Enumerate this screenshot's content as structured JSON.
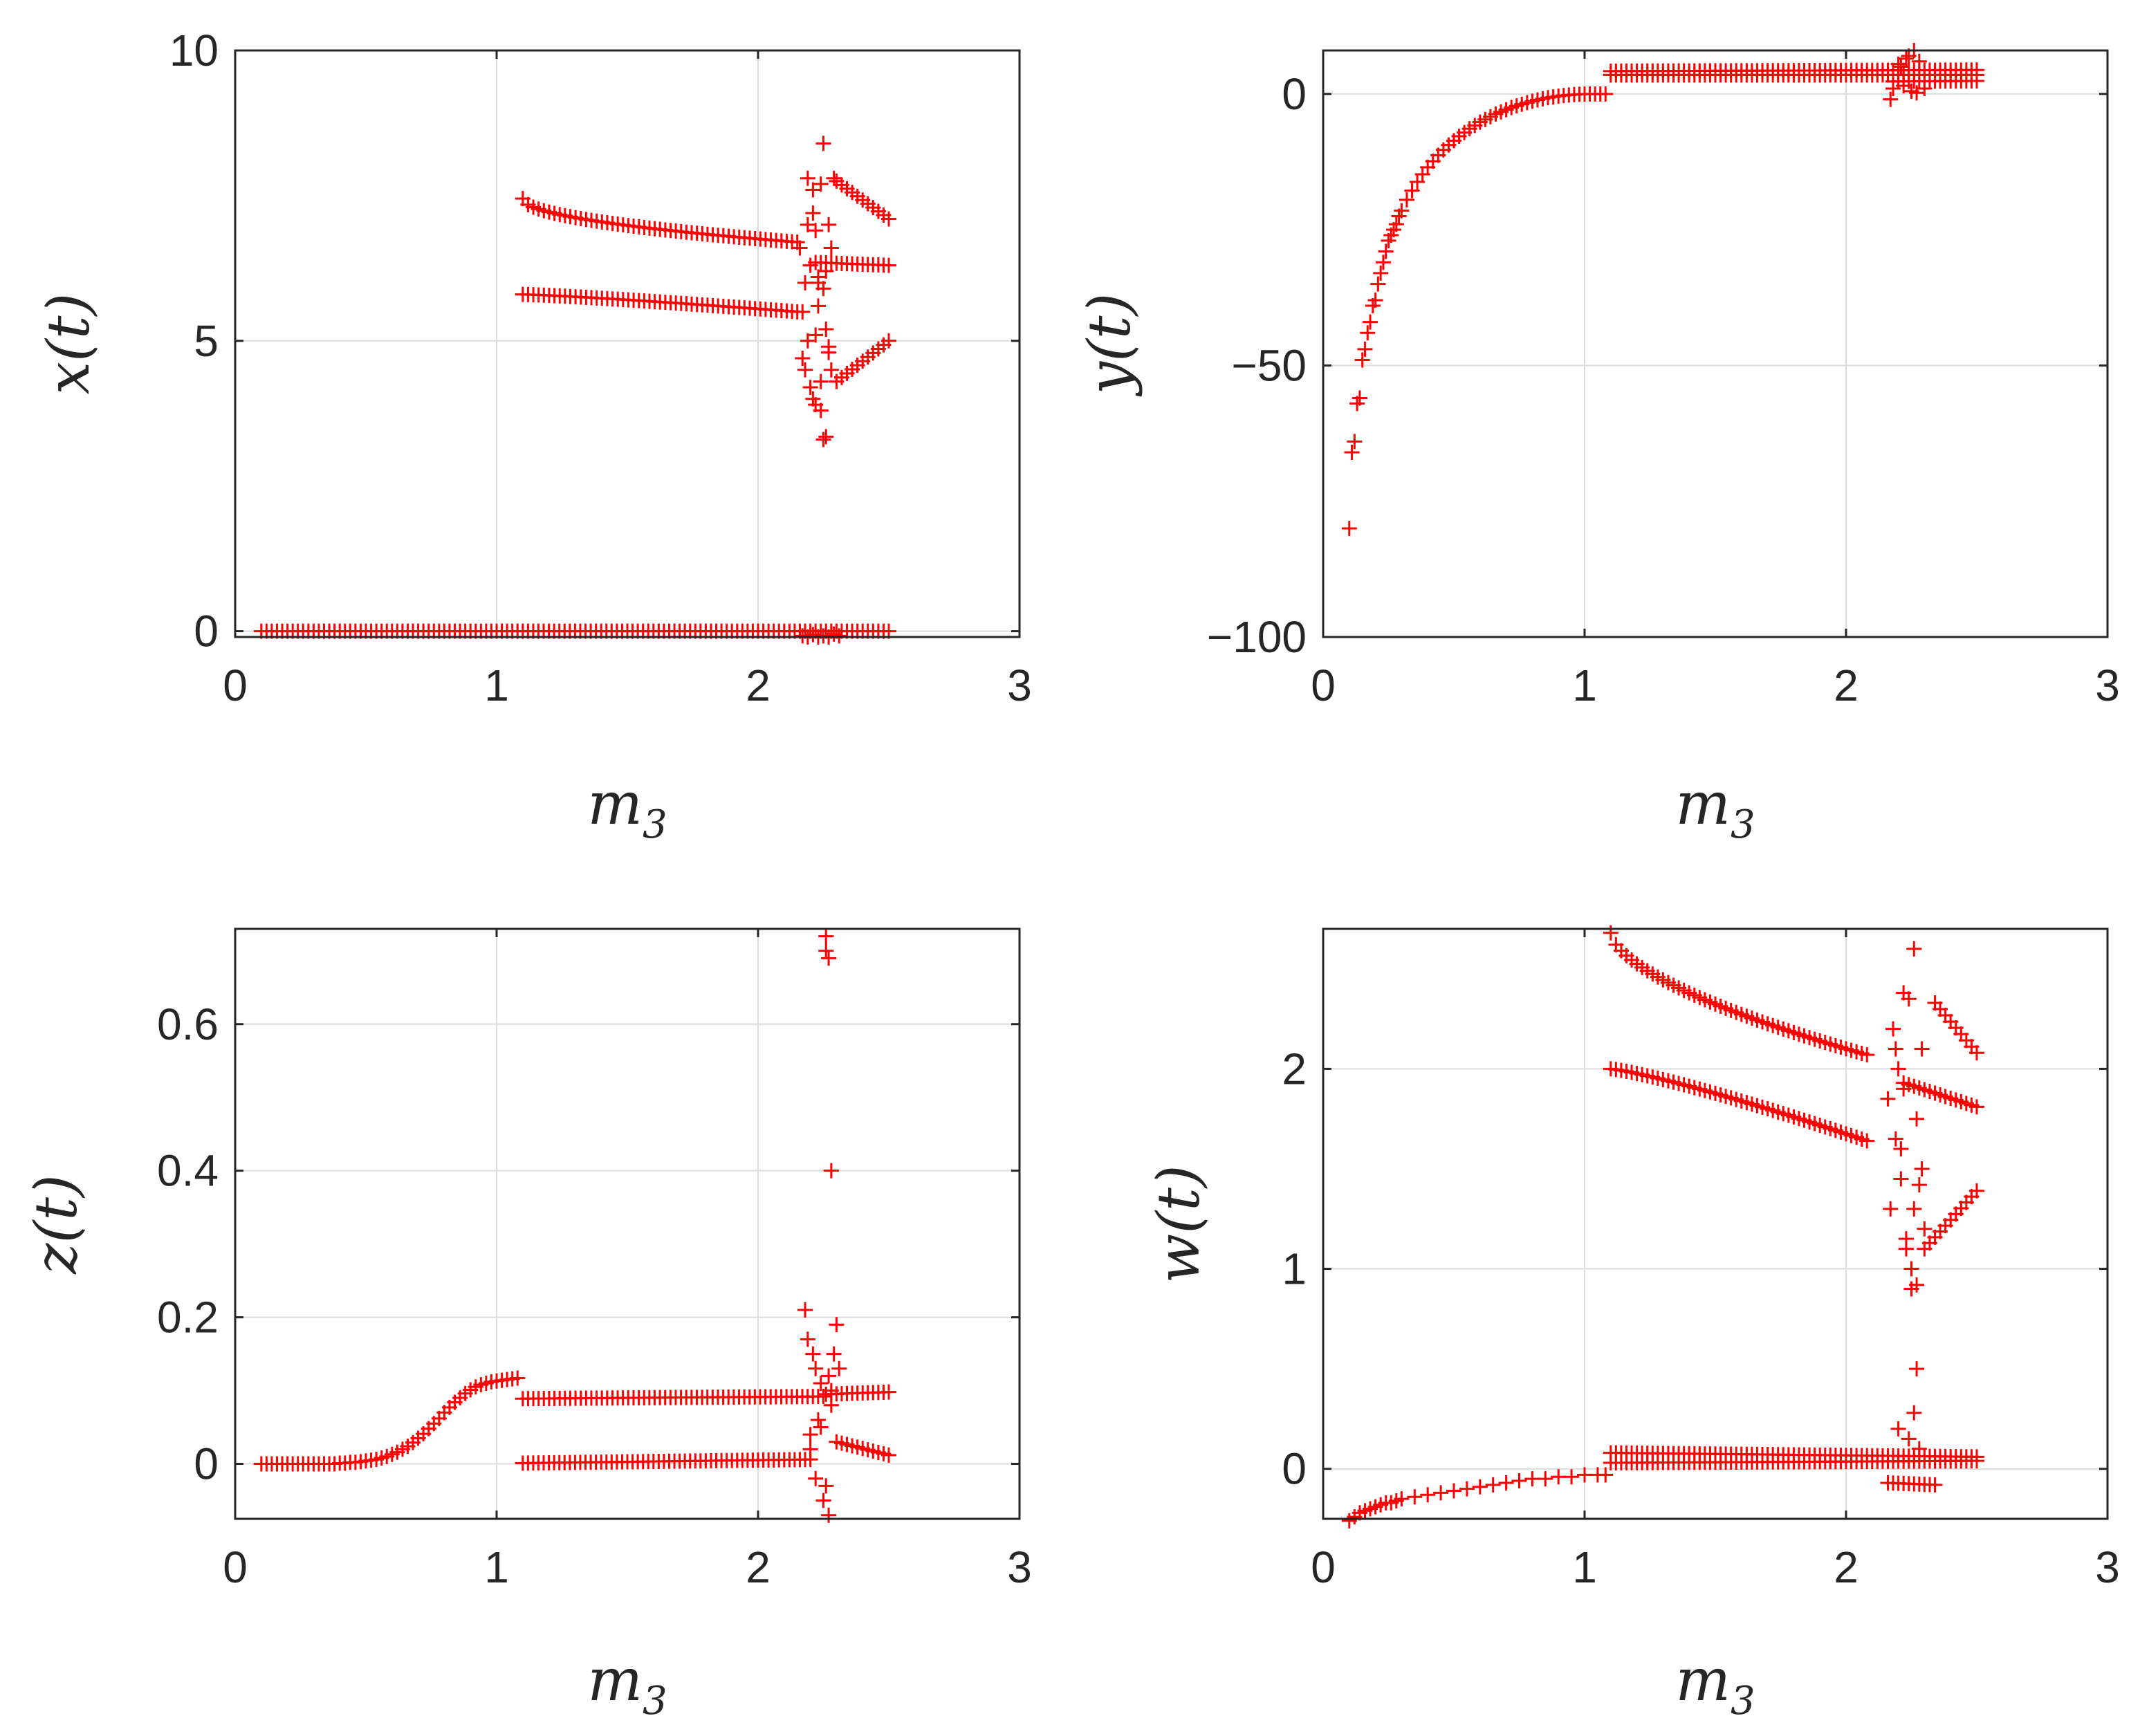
{
  "figure": {
    "marker_color": "#ff0000",
    "marker": "+",
    "background": "#ffffff"
  },
  "chart_data": [
    {
      "id": "x",
      "type": "scatter",
      "xlabel_var": "m",
      "xlabel_sub": "3",
      "ylabel": "x(t)",
      "xlim": [
        0,
        3
      ],
      "ylim": [
        -0.1,
        10
      ],
      "xticks": [
        0,
        1,
        2,
        3
      ],
      "xtick_labels": [
        "0",
        "1",
        "2",
        "3"
      ],
      "yticks": [
        0,
        5,
        10
      ],
      "ytick_labels": [
        "0",
        "5",
        "10"
      ],
      "grid": true,
      "series": [
        {
          "kind": "range",
          "x0": 0.1,
          "x1": 2.5,
          "step": 0.02,
          "y0": 0,
          "y1": 0
        },
        {
          "kind": "range",
          "x0": 1.1,
          "x1": 2.15,
          "step": 0.02,
          "y0": 7.45,
          "y1": 6.7,
          "curve": 0.5
        },
        {
          "kind": "range",
          "x0": 2.3,
          "x1": 2.5,
          "step": 0.02,
          "y0": 7.75,
          "y1": 7.1
        },
        {
          "kind": "range",
          "x0": 2.22,
          "x1": 2.5,
          "step": 0.02,
          "y0": 6.35,
          "y1": 6.3
        },
        {
          "kind": "range",
          "x0": 1.1,
          "x1": 2.15,
          "step": 0.02,
          "y0": 5.8,
          "y1": 5.5,
          "curve": 1.2
        },
        {
          "kind": "range",
          "x0": 2.3,
          "x1": 2.5,
          "step": 0.02,
          "y0": 4.3,
          "y1": 5.0
        },
        {
          "kind": "points",
          "x": [
            2.16,
            2.17,
            2.18,
            2.18,
            2.19,
            2.19,
            2.2,
            2.2,
            2.21,
            2.21,
            2.22,
            2.22,
            2.23,
            2.23,
            2.24,
            2.24,
            2.25,
            2.25,
            2.26,
            2.26,
            2.27,
            2.27,
            2.28,
            2.28,
            2.29,
            2.22,
            2.24,
            2.26,
            2.21,
            2.27,
            2.25,
            2.23,
            2.19,
            2.17
          ],
          "y": [
            6.6,
            5.5,
            4.5,
            6.0,
            7.8,
            5.0,
            4.2,
            6.3,
            7.2,
            4.0,
            6.9,
            3.9,
            5.6,
            6.0,
            3.8,
            7.7,
            3.3,
            8.4,
            3.35,
            5.2,
            4.8,
            7.0,
            4.5,
            6.6,
            7.8,
            5.1,
            4.3,
            6.2,
            7.6,
            4.9,
            5.9,
            6.1,
            7.0,
            4.7
          ]
        },
        {
          "kind": "points",
          "x": [
            2.17,
            2.19,
            2.21,
            2.23,
            2.25,
            2.27,
            2.29,
            2.31
          ],
          "y": [
            -0.08,
            -0.1,
            -0.06,
            -0.1,
            -0.08,
            -0.1,
            -0.05,
            -0.08
          ]
        }
      ]
    },
    {
      "id": "y",
      "type": "scatter",
      "xlabel_var": "m",
      "xlabel_sub": "3",
      "ylabel": "y(t)",
      "xlim": [
        0,
        3
      ],
      "ylim": [
        -100,
        8
      ],
      "xticks": [
        0,
        1,
        2,
        3
      ],
      "xtick_labels": [
        "0",
        "1",
        "2",
        "3"
      ],
      "yticks": [
        -100,
        -50,
        0
      ],
      "ytick_labels": [
        "−100",
        "−50",
        "0"
      ],
      "grid": true,
      "series": [
        {
          "kind": "points",
          "x": [
            0.1,
            0.11,
            0.12,
            0.13,
            0.14,
            0.15,
            0.16,
            0.17,
            0.18,
            0.19,
            0.2,
            0.21,
            0.22,
            0.23,
            0.24,
            0.25,
            0.26,
            0.27,
            0.28,
            0.29,
            0.3,
            0.32,
            0.34,
            0.36,
            0.38,
            0.4,
            0.42,
            0.44,
            0.46,
            0.48,
            0.5,
            0.52,
            0.54,
            0.56,
            0.58,
            0.6,
            0.62,
            0.64,
            0.66,
            0.68,
            0.7,
            0.72,
            0.74,
            0.76,
            0.78,
            0.8,
            0.82,
            0.84,
            0.86,
            0.88,
            0.9,
            0.92,
            0.94,
            0.96,
            0.98,
            1.0,
            1.02,
            1.04,
            1.06,
            1.08
          ],
          "y": [
            -80,
            -66,
            -64,
            -57,
            -56,
            -49,
            -47,
            -44,
            -42,
            -39,
            -38,
            -35,
            -33,
            -31,
            -29,
            -27,
            -26,
            -25,
            -24,
            -22.5,
            -21.5,
            -19.5,
            -17.8,
            -16.2,
            -14.8,
            -13.5,
            -12.4,
            -11.3,
            -10.3,
            -9.4,
            -8.6,
            -7.8,
            -7.1,
            -6.4,
            -5.8,
            -5.2,
            -4.7,
            -4.2,
            -3.7,
            -3.3,
            -2.9,
            -2.5,
            -2.2,
            -1.9,
            -1.6,
            -1.35,
            -1.1,
            -0.9,
            -0.7,
            -0.55,
            -0.4,
            -0.3,
            -0.2,
            -0.12,
            -0.06,
            -0.02,
            0,
            0,
            0,
            0
          ]
        },
        {
          "kind": "range",
          "x0": 1.1,
          "x1": 2.5,
          "step": 0.02,
          "y0": 3.5,
          "y1": 3.5
        },
        {
          "kind": "range",
          "x0": 1.1,
          "x1": 2.5,
          "step": 0.02,
          "y0": 4.2,
          "y1": 4.4
        },
        {
          "kind": "range",
          "x0": 2.18,
          "x1": 2.5,
          "step": 0.02,
          "y0": 2.3,
          "y1": 2.4
        },
        {
          "kind": "points",
          "x": [
            2.17,
            2.18,
            2.2,
            2.22,
            2.23,
            2.25,
            2.26,
            2.27,
            2.28,
            2.3,
            2.21,
            2.24
          ],
          "y": [
            -1,
            1,
            5.5,
            1.5,
            6.5,
            0.5,
            8,
            0.2,
            6,
            1,
            5,
            7
          ]
        }
      ]
    },
    {
      "id": "z",
      "type": "scatter",
      "xlabel_var": "m",
      "xlabel_sub": "3",
      "ylabel": "z(t)",
      "xlim": [
        0,
        3
      ],
      "ylim": [
        -0.075,
        0.73
      ],
      "xticks": [
        0,
        1,
        2,
        3
      ],
      "xtick_labels": [
        "0",
        "1",
        "2",
        "3"
      ],
      "yticks": [
        0,
        0.2,
        0.4,
        0.6
      ],
      "ytick_labels": [
        "0",
        "0.2",
        "0.4",
        "0.6"
      ],
      "grid": true,
      "series": [
        {
          "kind": "points",
          "x": [
            0.1,
            0.12,
            0.14,
            0.16,
            0.18,
            0.2,
            0.22,
            0.24,
            0.26,
            0.28,
            0.3,
            0.32,
            0.34,
            0.36,
            0.38,
            0.4,
            0.42,
            0.44,
            0.46,
            0.48,
            0.5,
            0.52,
            0.54,
            0.56,
            0.58,
            0.6,
            0.62,
            0.64,
            0.66,
            0.68,
            0.7,
            0.72,
            0.74,
            0.76,
            0.78,
            0.8,
            0.82,
            0.84,
            0.86,
            0.88,
            0.9,
            0.92,
            0.94,
            0.96,
            0.98,
            1.0,
            1.02,
            1.04,
            1.06,
            1.08
          ],
          "y": [
            0,
            0,
            0,
            0,
            0,
            0,
            0,
            0,
            0,
            0,
            0,
            0,
            0,
            0,
            0,
            0.001,
            0.001,
            0.002,
            0.002,
            0.003,
            0.004,
            0.005,
            0.006,
            0.008,
            0.01,
            0.013,
            0.016,
            0.02,
            0.024,
            0.029,
            0.035,
            0.041,
            0.048,
            0.055,
            0.062,
            0.07,
            0.077,
            0.084,
            0.09,
            0.096,
            0.101,
            0.105,
            0.108,
            0.11,
            0.112,
            0.113,
            0.114,
            0.115,
            0.116,
            0.117
          ]
        },
        {
          "kind": "range",
          "x0": 1.1,
          "x1": 2.25,
          "step": 0.02,
          "y0": 0.089,
          "y1": 0.092
        },
        {
          "kind": "range",
          "x0": 1.1,
          "x1": 2.2,
          "step": 0.02,
          "y0": 0.001,
          "y1": 0.006
        },
        {
          "kind": "range",
          "x0": 2.26,
          "x1": 2.5,
          "step": 0.02,
          "y0": 0.095,
          "y1": 0.098
        },
        {
          "kind": "range",
          "x0": 2.3,
          "x1": 2.5,
          "step": 0.02,
          "y0": 0.03,
          "y1": 0.012
        },
        {
          "kind": "points",
          "x": [
            2.18,
            2.19,
            2.2,
            2.21,
            2.22,
            2.23,
            2.24,
            2.25,
            2.26,
            2.26,
            2.27,
            2.27,
            2.28,
            2.28,
            2.29,
            2.3,
            2.31,
            2.2,
            2.22,
            2.24,
            2.26,
            2.27,
            2.28
          ],
          "y": [
            0.21,
            0.17,
            0.04,
            0.15,
            0.13,
            0.06,
            0.11,
            -0.05,
            0.72,
            0.7,
            0.69,
            -0.07,
            0.4,
            0.08,
            0.15,
            0.19,
            0.13,
            0.02,
            -0.02,
            0.05,
            -0.03,
            0.12,
            0.1
          ]
        }
      ]
    },
    {
      "id": "w",
      "type": "scatter",
      "xlabel_var": "m",
      "xlabel_sub": "3",
      "ylabel": "w(t)",
      "xlim": [
        0,
        3
      ],
      "ylim": [
        -0.25,
        2.7
      ],
      "xticks": [
        0,
        1,
        2,
        3
      ],
      "xtick_labels": [
        "0",
        "1",
        "2",
        "3"
      ],
      "yticks": [
        0,
        1,
        2
      ],
      "ytick_labels": [
        "0",
        "1",
        "2"
      ],
      "grid": true,
      "series": [
        {
          "kind": "points",
          "x": [
            0.1,
            0.12,
            0.14,
            0.16,
            0.18,
            0.2,
            0.22,
            0.24,
            0.26,
            0.28,
            0.3,
            0.35,
            0.4,
            0.45,
            0.5,
            0.55,
            0.6,
            0.65,
            0.7,
            0.75,
            0.8,
            0.85,
            0.9,
            0.95,
            1.0,
            1.05,
            1.08
          ],
          "y": [
            -0.26,
            -0.24,
            -0.22,
            -0.21,
            -0.2,
            -0.19,
            -0.18,
            -0.17,
            -0.17,
            -0.16,
            -0.15,
            -0.14,
            -0.13,
            -0.12,
            -0.11,
            -0.1,
            -0.09,
            -0.08,
            -0.07,
            -0.06,
            -0.05,
            -0.05,
            -0.04,
            -0.04,
            -0.03,
            -0.03,
            -0.03
          ]
        },
        {
          "kind": "range",
          "x0": 1.1,
          "x1": 2.5,
          "step": 0.02,
          "y0": 0.03,
          "y1": 0.04
        },
        {
          "kind": "range",
          "x0": 1.1,
          "x1": 2.5,
          "step": 0.02,
          "y0": 0.08,
          "y1": 0.06
        },
        {
          "kind": "range",
          "x0": 1.1,
          "x1": 2.08,
          "step": 0.02,
          "y0": 2.68,
          "y1": 2.07,
          "curve": 0.6
        },
        {
          "kind": "range",
          "x0": 2.34,
          "x1": 2.5,
          "step": 0.02,
          "y0": 2.33,
          "y1": 2.08
        },
        {
          "kind": "range",
          "x0": 2.22,
          "x1": 2.5,
          "step": 0.02,
          "y0": 1.93,
          "y1": 1.81
        },
        {
          "kind": "range",
          "x0": 1.1,
          "x1": 2.08,
          "step": 0.02,
          "y0": 2.0,
          "y1": 1.64,
          "curve": 1.2
        },
        {
          "kind": "range",
          "x0": 2.3,
          "x1": 2.5,
          "step": 0.02,
          "y0": 1.1,
          "y1": 1.39
        },
        {
          "kind": "range",
          "x0": 2.16,
          "x1": 2.34,
          "step": 0.02,
          "y0": -0.07,
          "y1": -0.08
        },
        {
          "kind": "points",
          "x": [
            2.16,
            2.17,
            2.18,
            2.19,
            2.2,
            2.21,
            2.22,
            2.23,
            2.24,
            2.25,
            2.26,
            2.27,
            2.28,
            2.29,
            2.3,
            2.21,
            2.23,
            2.25,
            2.27,
            2.29,
            2.2,
            2.24,
            2.26,
            2.28,
            2.19,
            2.22,
            2.26,
            2.27
          ],
          "y": [
            1.85,
            1.3,
            2.2,
            1.65,
            2.0,
            1.45,
            2.38,
            1.15,
            2.35,
            1.0,
            2.6,
            0.5,
            1.42,
            2.1,
            1.2,
            1.6,
            1.1,
            0.9,
            1.75,
            1.5,
            0.2,
            0.15,
            0.28,
            0.1,
            2.1,
            1.9,
            1.3,
            0.92
          ]
        }
      ]
    }
  ]
}
